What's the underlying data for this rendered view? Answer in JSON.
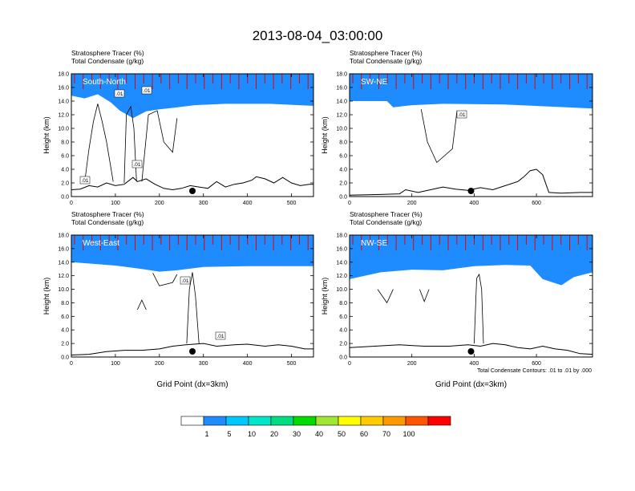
{
  "title": "2013-08-04_03:00:00",
  "colors": {
    "levels": [
      "#ffffff",
      "#1e8cff",
      "#00c8ff",
      "#00e6c8",
      "#00dc82",
      "#00dc00",
      "#a0e632",
      "#ffff00",
      "#ffcc00",
      "#ff9900",
      "#ff5500",
      "#ff0000"
    ]
  },
  "chart_data": {
    "type": "heatmap",
    "colorbar": {
      "labels": [
        "1",
        "5",
        "10",
        "20",
        "30",
        "40",
        "50",
        "60",
        "70",
        "100"
      ]
    },
    "panels": [
      {
        "label": "South-North",
        "field_lines": [
          "Stratosphere Tracer   (%)",
          "Total Condensate   (g/kg)"
        ],
        "ylabel": "Height (km)",
        "xlabel": "",
        "y_ticks": [
          "0.0",
          "2.0",
          "4.0",
          "6.0",
          "8.0",
          "10.0",
          "12.0",
          "14.0",
          "16.0",
          "18.0"
        ],
        "x_ticks": [
          "0",
          "100",
          "200",
          "300",
          "400",
          "500"
        ],
        "xlim": [
          0,
          550
        ],
        "ylim": [
          0,
          18
        ],
        "marker_x": 275,
        "contour_labels": [
          ".01",
          ".01",
          ".01",
          ".01"
        ],
        "terrain": [
          [
            0,
            1.0
          ],
          [
            20,
            1.1
          ],
          [
            40,
            1.6
          ],
          [
            60,
            1.4
          ],
          [
            80,
            2.0
          ],
          [
            100,
            1.6
          ],
          [
            120,
            1.8
          ],
          [
            140,
            2.8
          ],
          [
            150,
            2.2
          ],
          [
            170,
            2.6
          ],
          [
            190,
            1.8
          ],
          [
            210,
            1.2
          ],
          [
            230,
            1.0
          ],
          [
            250,
            1.2
          ],
          [
            270,
            1.6
          ],
          [
            290,
            1.4
          ],
          [
            310,
            1.2
          ],
          [
            330,
            2.2
          ],
          [
            350,
            1.4
          ],
          [
            370,
            1.8
          ],
          [
            390,
            2.0
          ],
          [
            410,
            2.4
          ],
          [
            420,
            2.9
          ],
          [
            440,
            2.6
          ],
          [
            460,
            2.0
          ],
          [
            480,
            2.8
          ],
          [
            500,
            2.0
          ],
          [
            520,
            1.6
          ],
          [
            540,
            1.8
          ],
          [
            550,
            1.8
          ]
        ],
        "tropopause": [
          [
            0,
            14.8
          ],
          [
            30,
            14.4
          ],
          [
            60,
            15.0
          ],
          [
            90,
            13.8
          ],
          [
            110,
            12.6
          ],
          [
            140,
            11.5
          ],
          [
            170,
            12.5
          ],
          [
            200,
            12.8
          ],
          [
            230,
            13.0
          ],
          [
            280,
            13.4
          ],
          [
            350,
            13.6
          ],
          [
            450,
            13.6
          ],
          [
            550,
            13.3
          ]
        ]
      },
      {
        "label": "SW-NE",
        "field_lines": [
          "Stratosphere Tracer   (%)",
          "Total Condensate   (g/kg)"
        ],
        "ylabel": "Height (km)",
        "xlabel": "",
        "y_ticks": [
          "0.0",
          "2.0",
          "4.0",
          "6.0",
          "8.0",
          "10.0",
          "12.0",
          "14.0",
          "16.0",
          "18.0"
        ],
        "x_ticks": [
          "0",
          "200",
          "400",
          "600"
        ],
        "xlim": [
          0,
          780
        ],
        "ylim": [
          0,
          18
        ],
        "marker_x": 390,
        "contour_labels": [
          ".01"
        ],
        "terrain": [
          [
            0,
            0.2
          ],
          [
            100,
            0.3
          ],
          [
            160,
            0.4
          ],
          [
            180,
            1.0
          ],
          [
            220,
            0.6
          ],
          [
            260,
            1.0
          ],
          [
            300,
            1.4
          ],
          [
            340,
            1.1
          ],
          [
            380,
            0.9
          ],
          [
            420,
            1.3
          ],
          [
            460,
            1.0
          ],
          [
            500,
            1.6
          ],
          [
            540,
            2.2
          ],
          [
            560,
            2.9
          ],
          [
            580,
            3.8
          ],
          [
            600,
            4.0
          ],
          [
            620,
            3.2
          ],
          [
            640,
            0.6
          ],
          [
            680,
            0.5
          ],
          [
            740,
            0.6
          ],
          [
            780,
            0.6
          ]
        ],
        "tropopause": [
          [
            0,
            14.0
          ],
          [
            120,
            14.0
          ],
          [
            140,
            13.1
          ],
          [
            200,
            13.4
          ],
          [
            300,
            13.6
          ],
          [
            500,
            13.5
          ],
          [
            780,
            12.9
          ]
        ]
      },
      {
        "label": "West-East",
        "field_lines": [
          "Stratosphere Tracer   (%)",
          "Total Condensate   (g/kg)"
        ],
        "ylabel": "Height (km)",
        "xlabel": "Grid Point (dx=3km)",
        "y_ticks": [
          "0.0",
          "2.0",
          "4.0",
          "6.0",
          "8.0",
          "10.0",
          "12.0",
          "14.0",
          "16.0",
          "18.0"
        ],
        "x_ticks": [
          "0",
          "100",
          "200",
          "300",
          "400",
          "500"
        ],
        "xlim": [
          0,
          550
        ],
        "ylim": [
          0,
          18
        ],
        "marker_x": 275,
        "contour_labels": [
          ".01",
          ".01"
        ],
        "terrain": [
          [
            0,
            0.3
          ],
          [
            40,
            0.4
          ],
          [
            80,
            0.8
          ],
          [
            120,
            1.0
          ],
          [
            160,
            1.0
          ],
          [
            200,
            1.2
          ],
          [
            230,
            1.6
          ],
          [
            260,
            1.8
          ],
          [
            300,
            2.0
          ],
          [
            330,
            1.6
          ],
          [
            370,
            1.8
          ],
          [
            400,
            1.9
          ],
          [
            440,
            1.6
          ],
          [
            470,
            1.8
          ],
          [
            500,
            1.6
          ],
          [
            530,
            1.2
          ],
          [
            550,
            1.2
          ]
        ],
        "tropopause": [
          [
            0,
            14.0
          ],
          [
            100,
            13.5
          ],
          [
            160,
            13.0
          ],
          [
            200,
            12.6
          ],
          [
            240,
            12.8
          ],
          [
            300,
            13.3
          ],
          [
            400,
            13.4
          ],
          [
            550,
            13.4
          ]
        ]
      },
      {
        "label": "NW-SE",
        "field_lines": [
          "Stratosphere Tracer   (%)",
          "Total Condensate   (g/kg)"
        ],
        "ylabel": "Height (km)",
        "xlabel": "Grid Point (dx=3km)",
        "y_ticks": [
          "0.0",
          "2.0",
          "4.0",
          "6.0",
          "8.0",
          "10.0",
          "12.0",
          "14.0",
          "16.0",
          "18.0"
        ],
        "x_ticks": [
          "0",
          "200",
          "400",
          "600"
        ],
        "xlim": [
          0,
          780
        ],
        "ylim": [
          0,
          18
        ],
        "marker_x": 390,
        "contour_labels": [],
        "terrain": [
          [
            0,
            1.4
          ],
          [
            80,
            1.6
          ],
          [
            160,
            1.8
          ],
          [
            240,
            1.6
          ],
          [
            320,
            1.6
          ],
          [
            380,
            1.8
          ],
          [
            420,
            1.6
          ],
          [
            460,
            2.0
          ],
          [
            500,
            1.8
          ],
          [
            540,
            1.4
          ],
          [
            580,
            1.2
          ],
          [
            620,
            1.6
          ],
          [
            660,
            1.2
          ],
          [
            700,
            1.0
          ],
          [
            740,
            0.5
          ],
          [
            780,
            0.4
          ]
        ],
        "tropopause": [
          [
            0,
            11.5
          ],
          [
            100,
            12.5
          ],
          [
            200,
            12.9
          ],
          [
            300,
            12.8
          ],
          [
            400,
            13.4
          ],
          [
            500,
            13.6
          ],
          [
            580,
            13.5
          ],
          [
            620,
            11.5
          ],
          [
            680,
            10.6
          ],
          [
            720,
            11.8
          ],
          [
            780,
            12.5
          ]
        ]
      }
    ],
    "footnote": "Total Condensate Contours: .01 to .01 by .000"
  }
}
